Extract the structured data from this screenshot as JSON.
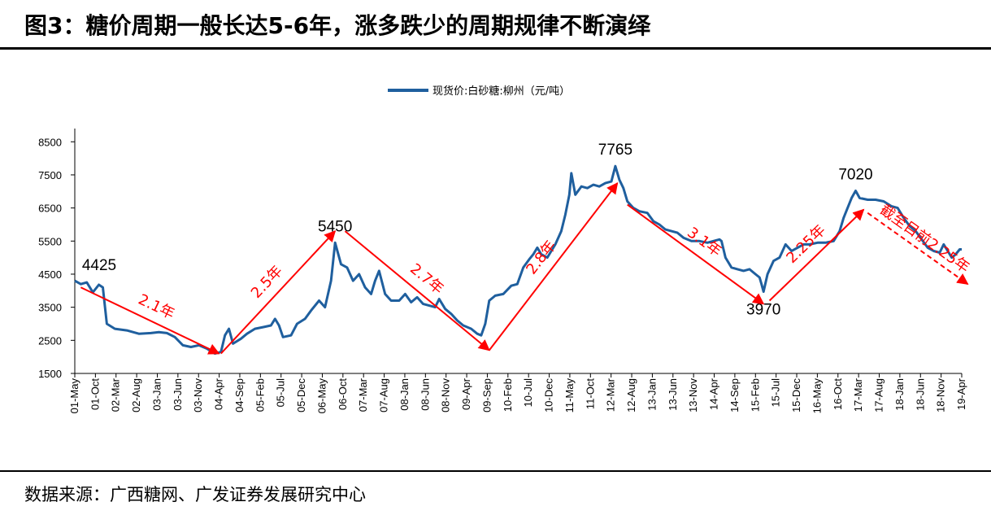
{
  "title": "图3：糖价周期一般长达5-6年，涨多跌少的周期规律不断演绎",
  "source": "数据来源：广西糖网、广发证券发展研究中心",
  "chart_data": {
    "type": "line",
    "series": [
      {
        "name": "现货价:白砂糖:柳州（元/吨）",
        "color": "#1f5f9e",
        "points": [
          [
            0,
            4300
          ],
          [
            3,
            4200
          ],
          [
            6,
            4250
          ],
          [
            9,
            3950
          ],
          [
            12,
            4180
          ],
          [
            14,
            4100
          ],
          [
            16,
            3000
          ],
          [
            20,
            2850
          ],
          [
            26,
            2800
          ],
          [
            32,
            2700
          ],
          [
            38,
            2720
          ],
          [
            42,
            2750
          ],
          [
            46,
            2720
          ],
          [
            50,
            2600
          ],
          [
            54,
            2350
          ],
          [
            58,
            2300
          ],
          [
            62,
            2350
          ],
          [
            66,
            2250
          ],
          [
            70,
            2100
          ],
          [
            73,
            2150
          ],
          [
            75,
            2650
          ],
          [
            77,
            2850
          ],
          [
            79,
            2400
          ],
          [
            83,
            2550
          ],
          [
            86,
            2700
          ],
          [
            90,
            2850
          ],
          [
            94,
            2900
          ],
          [
            98,
            2950
          ],
          [
            100,
            3150
          ],
          [
            102,
            2950
          ],
          [
            104,
            2600
          ],
          [
            108,
            2650
          ],
          [
            111,
            3000
          ],
          [
            115,
            3150
          ],
          [
            118,
            3400
          ],
          [
            122,
            3700
          ],
          [
            125,
            3500
          ],
          [
            128,
            4300
          ],
          [
            130,
            5450
          ],
          [
            133,
            4800
          ],
          [
            136,
            4700
          ],
          [
            139,
            4300
          ],
          [
            142,
            4500
          ],
          [
            145,
            4100
          ],
          [
            148,
            3900
          ],
          [
            150,
            4300
          ],
          [
            152,
            4600
          ],
          [
            155,
            3900
          ],
          [
            158,
            3700
          ],
          [
            162,
            3700
          ],
          [
            165,
            3900
          ],
          [
            168,
            3650
          ],
          [
            171,
            3800
          ],
          [
            174,
            3600
          ],
          [
            177,
            3550
          ],
          [
            180,
            3500
          ],
          [
            182,
            3750
          ],
          [
            185,
            3450
          ],
          [
            188,
            3300
          ],
          [
            191,
            3100
          ],
          [
            194,
            2950
          ],
          [
            198,
            2850
          ],
          [
            201,
            2700
          ],
          [
            203,
            2650
          ],
          [
            205,
            3000
          ],
          [
            207,
            3700
          ],
          [
            210,
            3850
          ],
          [
            214,
            3900
          ],
          [
            218,
            4150
          ],
          [
            221,
            4200
          ],
          [
            224,
            4700
          ],
          [
            227,
            4950
          ],
          [
            229,
            5100
          ],
          [
            231,
            5300
          ],
          [
            233,
            5100
          ],
          [
            236,
            5000
          ],
          [
            240,
            5400
          ],
          [
            243,
            5800
          ],
          [
            245,
            6300
          ],
          [
            247,
            6900
          ],
          [
            248,
            7550
          ],
          [
            250,
            6900
          ],
          [
            253,
            7150
          ],
          [
            256,
            7100
          ],
          [
            259,
            7200
          ],
          [
            262,
            7150
          ],
          [
            265,
            7250
          ],
          [
            268,
            7300
          ],
          [
            270,
            7765
          ],
          [
            272,
            7350
          ],
          [
            274,
            7100
          ],
          [
            276,
            6700
          ],
          [
            279,
            6500
          ],
          [
            282,
            6400
          ],
          [
            286,
            6350
          ],
          [
            289,
            6100
          ],
          [
            292,
            6000
          ],
          [
            295,
            5850
          ],
          [
            298,
            5800
          ],
          [
            301,
            5750
          ],
          [
            304,
            5600
          ],
          [
            308,
            5500
          ],
          [
            312,
            5500
          ],
          [
            316,
            5450
          ],
          [
            319,
            5500
          ],
          [
            322,
            5550
          ],
          [
            323,
            5500
          ],
          [
            325,
            5000
          ],
          [
            328,
            4700
          ],
          [
            331,
            4650
          ],
          [
            334,
            4600
          ],
          [
            337,
            4650
          ],
          [
            340,
            4500
          ],
          [
            342,
            4400
          ],
          [
            343,
            4200
          ],
          [
            344,
            3970
          ],
          [
            346,
            4500
          ],
          [
            349,
            4900
          ],
          [
            352,
            5000
          ],
          [
            355,
            5400
          ],
          [
            358,
            5200
          ],
          [
            361,
            5300
          ],
          [
            364,
            5400
          ],
          [
            367,
            5400
          ],
          [
            371,
            5450
          ],
          [
            375,
            5450
          ],
          [
            379,
            5500
          ],
          [
            382,
            5800
          ],
          [
            384,
            6200
          ],
          [
            386,
            6500
          ],
          [
            388,
            6800
          ],
          [
            390,
            7020
          ],
          [
            392,
            6800
          ],
          [
            396,
            6750
          ],
          [
            400,
            6750
          ],
          [
            404,
            6700
          ],
          [
            408,
            6550
          ],
          [
            411,
            6500
          ],
          [
            414,
            6200
          ],
          [
            417,
            5950
          ],
          [
            420,
            5800
          ],
          [
            423,
            5550
          ],
          [
            426,
            5300
          ],
          [
            429,
            5200
          ],
          [
            432,
            5150
          ],
          [
            434,
            5400
          ],
          [
            436,
            5200
          ],
          [
            438,
            5000
          ],
          [
            440,
            5100
          ],
          [
            442,
            5250
          ],
          [
            443,
            5250
          ]
        ]
      }
    ],
    "xlabels": [
      "01-May",
      "01-Oct",
      "02-Mar",
      "02-Aug",
      "03-Jan",
      "03-Jun",
      "03-Nov",
      "04-Apr",
      "04-Sep",
      "05-Feb",
      "05-Jul",
      "05-Dec",
      "06-May",
      "06-Oct",
      "07-Mar",
      "07-Aug",
      "08-Jan",
      "08-Jun",
      "08-Nov",
      "09-Apr",
      "09-Sep",
      "10-Feb",
      "10-Jul",
      "10-Dec",
      "11-May",
      "11-Oct",
      "12-Mar",
      "12-Aug",
      "13-Jan",
      "13-Jun",
      "13-Nov",
      "14-Apr",
      "14-Sep",
      "15-Feb",
      "15-Jul",
      "15-Dec",
      "16-May",
      "16-Oct",
      "17-Mar",
      "17-Aug",
      "18-Jan",
      "18-Jun",
      "18-Nov",
      "19-Apr"
    ],
    "yticks": [
      1500,
      2500,
      3500,
      4500,
      5500,
      6500,
      7500,
      8500
    ],
    "ylim": [
      1500,
      8900
    ],
    "xlim": [
      0,
      443
    ],
    "peak_labels": [
      {
        "text": "4425",
        "x": 0,
        "y": 4425
      },
      {
        "text": "5450",
        "x": 130,
        "y": 5450
      },
      {
        "text": "7765",
        "x": 270,
        "y": 7765
      },
      {
        "text": "3970",
        "x": 344,
        "y": 3970
      },
      {
        "text": "7020",
        "x": 390,
        "y": 7020
      }
    ],
    "cycle_annotations": [
      {
        "text": "2.1年",
        "from": [
          3,
          4100
        ],
        "to": [
          72,
          2100
        ],
        "dashed": false
      },
      {
        "text": "2.5年",
        "from": [
          73,
          2100
        ],
        "to": [
          130,
          5800
        ],
        "dashed": false
      },
      {
        "text": "2.7年",
        "from": [
          135,
          5800
        ],
        "to": [
          207,
          2200
        ],
        "dashed": false
      },
      {
        "text": "2.8年",
        "from": [
          207,
          2200
        ],
        "to": [
          271,
          7250
        ],
        "dashed": false
      },
      {
        "text": "3.1年",
        "from": [
          276,
          6600
        ],
        "to": [
          344,
          3600
        ],
        "dashed": false
      },
      {
        "text": "2.25年",
        "from": [
          347,
          3700
        ],
        "to": [
          394,
          6450
        ],
        "dashed": false
      },
      {
        "text": "截至目前2.25年",
        "from": [
          396,
          6350
        ],
        "to": [
          446,
          4200
        ],
        "dashed": true
      }
    ]
  }
}
